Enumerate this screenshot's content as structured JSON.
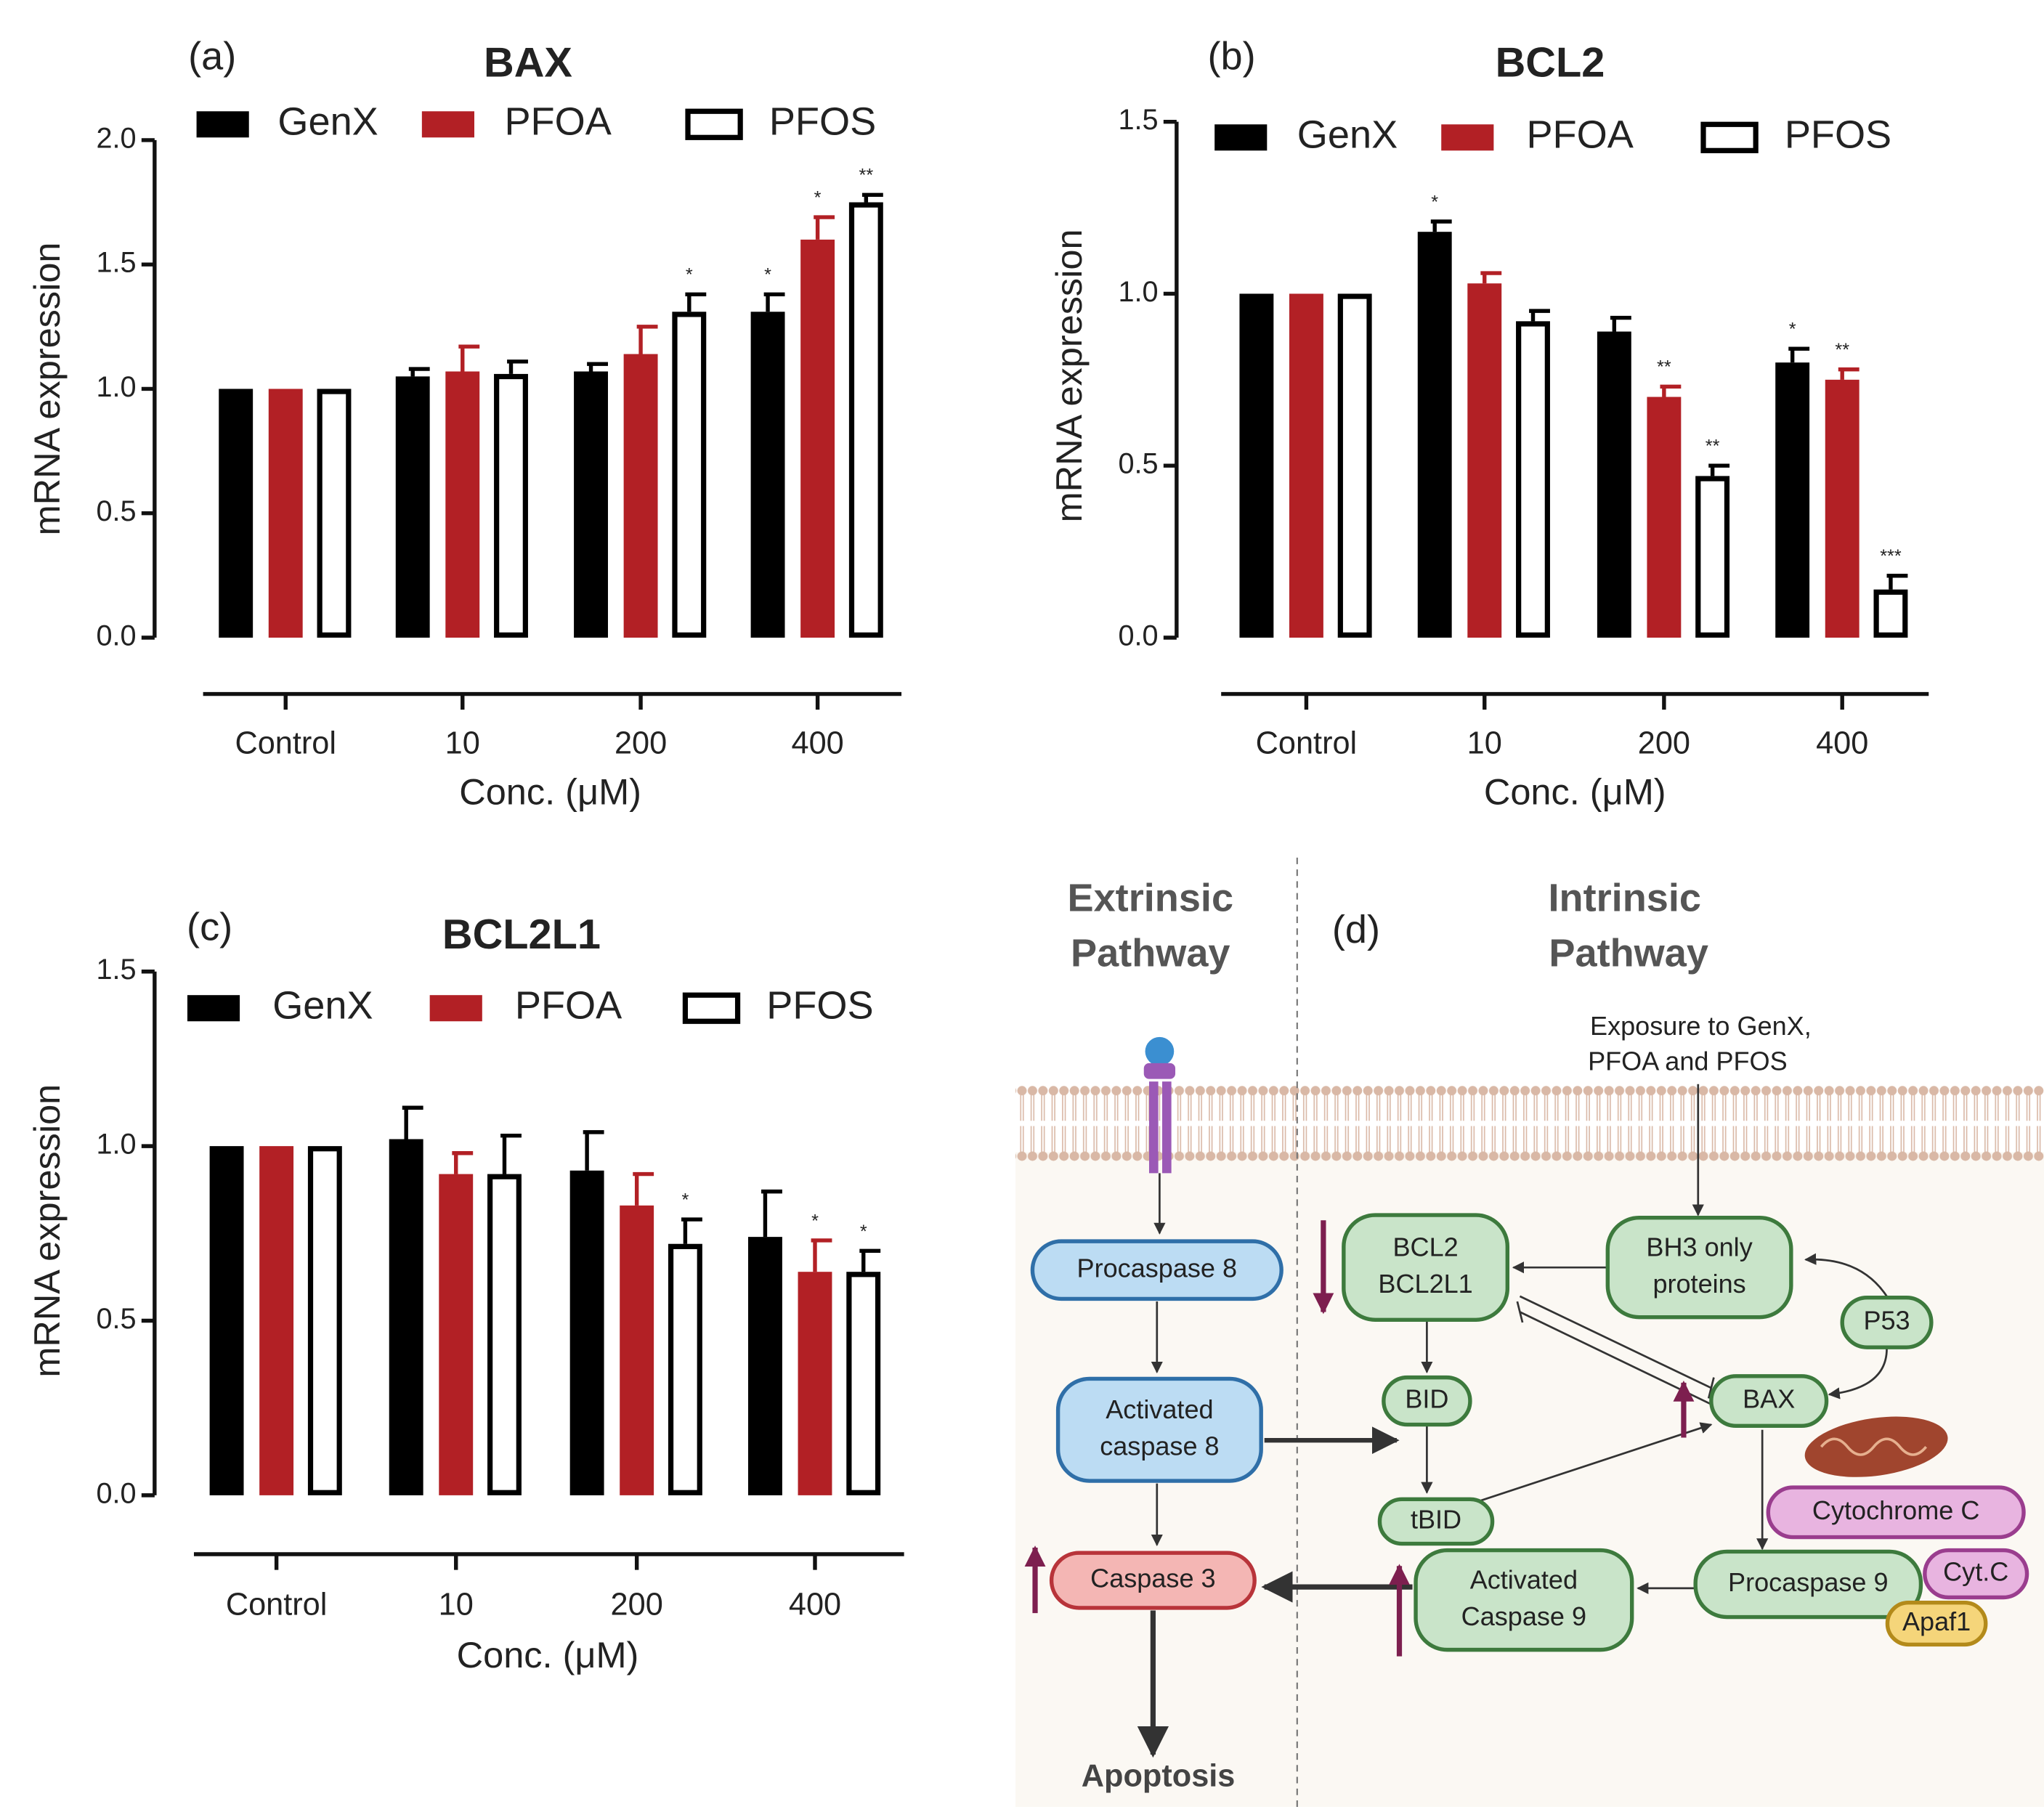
{
  "chart_data": [
    {
      "type": "bar",
      "panel": "(a)",
      "title": "BAX",
      "xlabel": "Conc. (μM)",
      "ylabel": "mRNA expression",
      "categories": [
        "Control",
        "10",
        "200",
        "400"
      ],
      "ylim": [
        0,
        2
      ],
      "yticks": [
        {
          "value": 0,
          "label": "0.0"
        },
        0.5,
        {
          "value": 1,
          "label": "1.0"
        },
        1.5,
        {
          "value": 2,
          "label": "2.0"
        }
      ],
      "series": [
        {
          "name": "GenX",
          "color": "#000000",
          "values": [
            1.0,
            1.05,
            1.07,
            1.31
          ],
          "errors": [
            0,
            0.03,
            0.03,
            0.07
          ],
          "annotations": [
            null,
            null,
            null,
            "*"
          ]
        },
        {
          "name": "PFOA",
          "color": "#b22025",
          "values": [
            1.0,
            1.07,
            1.14,
            1.6
          ],
          "errors": [
            0,
            0.1,
            0.11,
            0.09
          ],
          "annotations": [
            null,
            null,
            null,
            "*"
          ]
        },
        {
          "name": "PFOS",
          "color": "#ffffff",
          "edgecolor": "#000000",
          "values": [
            1.0,
            1.06,
            1.31,
            1.75
          ],
          "errors": [
            0,
            0.05,
            0.07,
            0.03
          ],
          "annotations": [
            null,
            null,
            "*",
            "**"
          ]
        }
      ]
    },
    {
      "type": "bar",
      "panel": "(b)",
      "title": "BCL2",
      "xlabel": "Conc. (μM)",
      "ylabel": "mRNA expression",
      "categories": [
        "Control",
        "10",
        "200",
        "400"
      ],
      "ylim": [
        0,
        1.5
      ],
      "yticks": [
        {
          "value": 0,
          "label": "0.0"
        },
        0.5,
        {
          "value": 1,
          "label": "1.0"
        },
        1.5
      ],
      "series": [
        {
          "name": "GenX",
          "color": "#000000",
          "values": [
            1.0,
            1.18,
            0.89,
            0.8
          ],
          "errors": [
            0,
            0.03,
            0.04,
            0.04
          ],
          "annotations": [
            null,
            "*",
            null,
            "*"
          ]
        },
        {
          "name": "PFOA",
          "color": "#b22025",
          "values": [
            1.0,
            1.03,
            0.7,
            0.75
          ],
          "errors": [
            0,
            0.03,
            0.03,
            0.03
          ],
          "annotations": [
            null,
            null,
            "**",
            "**"
          ]
        },
        {
          "name": "PFOS",
          "color": "#ffffff",
          "edgecolor": "#000000",
          "values": [
            1.0,
            0.92,
            0.47,
            0.14
          ],
          "errors": [
            0,
            0.03,
            0.03,
            0.04
          ],
          "annotations": [
            null,
            null,
            "**",
            "***"
          ]
        }
      ]
    },
    {
      "type": "bar",
      "panel": "(c)",
      "title": "BCL2L1",
      "xlabel": "Conc. (μM)",
      "ylabel": "mRNA expression",
      "categories": [
        "Control",
        "10",
        "200",
        "400"
      ],
      "ylim": [
        0,
        1.5
      ],
      "yticks": [
        {
          "value": 0,
          "label": "0.0"
        },
        0.5,
        {
          "value": 1,
          "label": "1.0"
        },
        1.5
      ],
      "series": [
        {
          "name": "GenX",
          "color": "#000000",
          "values": [
            1.0,
            1.02,
            0.93,
            0.74
          ],
          "errors": [
            0,
            0.09,
            0.11,
            0.13
          ],
          "annotations": [
            null,
            null,
            null,
            null
          ]
        },
        {
          "name": "PFOA",
          "color": "#b22025",
          "values": [
            1.0,
            0.92,
            0.83,
            0.64
          ],
          "errors": [
            0,
            0.06,
            0.09,
            0.09
          ],
          "annotations": [
            null,
            null,
            null,
            "*"
          ]
        },
        {
          "name": "PFOS",
          "color": "#ffffff",
          "edgecolor": "#000000",
          "values": [
            1.0,
            0.92,
            0.72,
            0.64
          ],
          "errors": [
            0,
            0.11,
            0.07,
            0.06
          ],
          "annotations": [
            null,
            null,
            "*",
            "*"
          ]
        }
      ]
    }
  ],
  "diagram": {
    "label": "(d)",
    "extrinsic_title": [
      "Extrinsic",
      "Pathway"
    ],
    "intrinsic_title": [
      "Intrinsic",
      "Pathway"
    ],
    "exposure": [
      "Exposure to GenX,",
      "PFOA and PFOS"
    ],
    "outcome": "Apoptosis",
    "nodes": [
      {
        "lines": [
          "Procaspase 8"
        ]
      },
      {
        "lines": [
          "Activated",
          "caspase 8"
        ]
      },
      {
        "lines": [
          "Caspase 3"
        ]
      },
      {
        "lines": [
          "BCL2",
          "BCL2L1"
        ]
      },
      {
        "lines": [
          "BH3 only",
          "proteins"
        ]
      },
      {
        "lines": [
          "P53"
        ]
      },
      {
        "lines": [
          "BID"
        ]
      },
      {
        "lines": [
          "BAX"
        ]
      },
      {
        "lines": [
          "tBID"
        ]
      },
      {
        "lines": [
          "Cytochrome C"
        ]
      },
      {
        "lines": [
          "Activated",
          "Caspase 9"
        ]
      },
      {
        "lines": [
          "Procaspase 9"
        ]
      },
      {
        "lines": [
          "Cyt.C"
        ]
      },
      {
        "lines": [
          "Apaf1"
        ]
      }
    ]
  }
}
